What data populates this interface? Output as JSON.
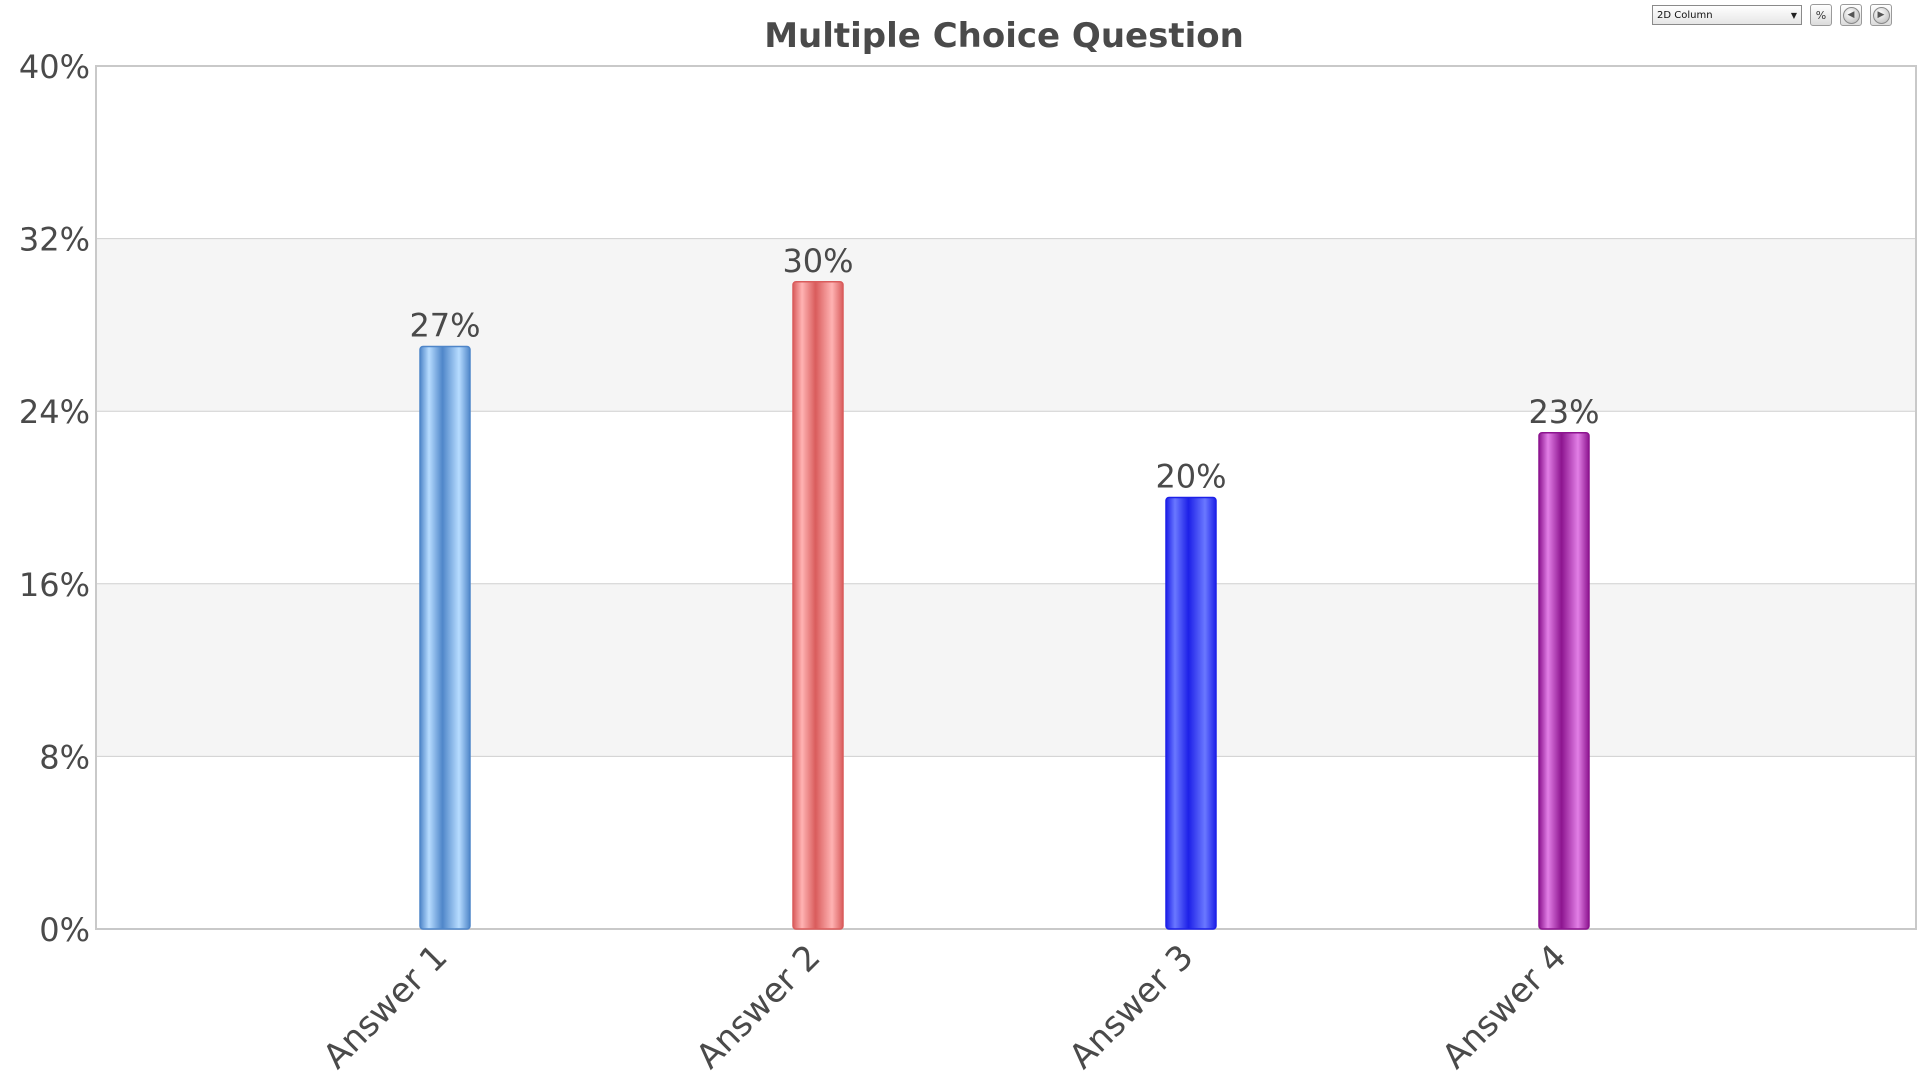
{
  "toolbar": {
    "chart_type_value": "2D Column",
    "percent_label": "%",
    "prev_icon": "arrow-left-circle-icon",
    "next_icon": "arrow-right-circle-icon"
  },
  "chart_data": {
    "type": "bar",
    "title": "Multiple Choice Question",
    "xlabel": "",
    "ylabel": "",
    "categories": [
      "Answer 1",
      "Answer 2",
      "Answer 3",
      "Answer 4"
    ],
    "values": [
      27,
      30,
      20,
      23
    ],
    "data_labels": [
      "27%",
      "30%",
      "20%",
      "23%"
    ],
    "ylim": [
      0,
      40
    ],
    "yticks": [
      0,
      8,
      16,
      24,
      32,
      40
    ],
    "ytick_labels": [
      "0%",
      "8%",
      "16%",
      "24%",
      "32%",
      "40%"
    ],
    "grid": true,
    "legend": "none",
    "colors": [
      {
        "dark": "#4f86c9",
        "light": "#b7dcff"
      },
      {
        "dark": "#d95c5c",
        "light": "#ffb3b3"
      },
      {
        "dark": "#1d20e8",
        "light": "#6a78ff"
      },
      {
        "dark": "#8c148f",
        "light": "#e27fe6"
      }
    ],
    "band_color": "#f5f5f5",
    "grid_color": "#cfcfcf",
    "text_color": "#4a4a4a"
  }
}
